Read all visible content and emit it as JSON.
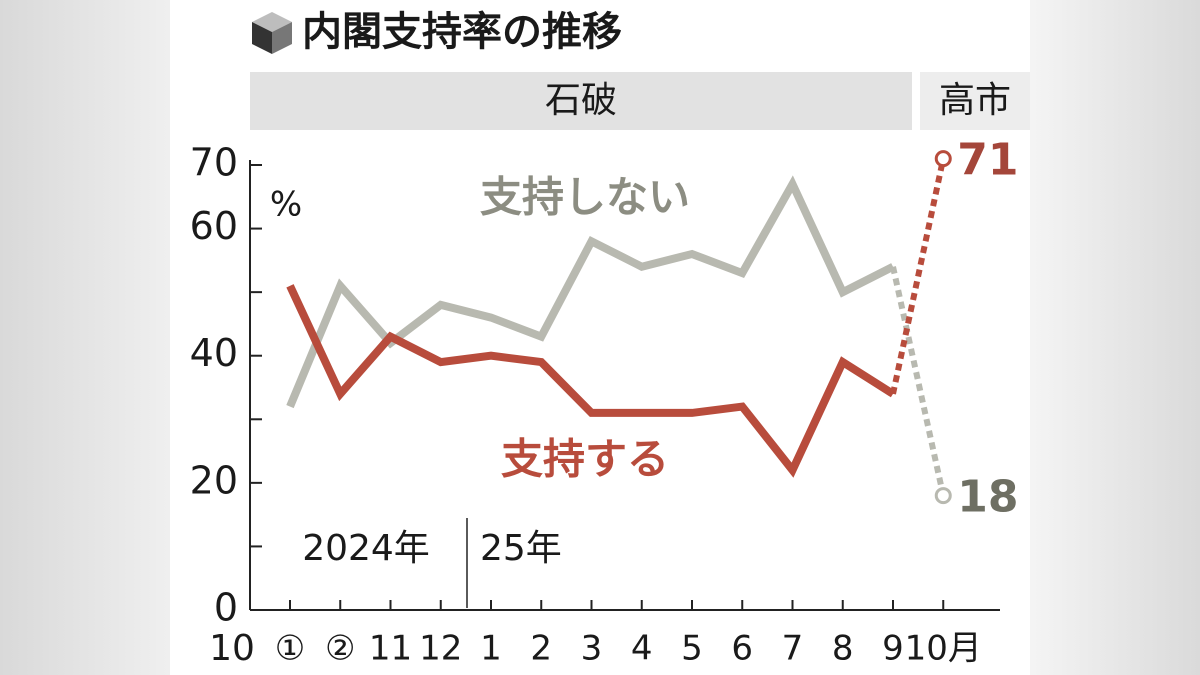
{
  "chart_data": {
    "type": "line",
    "title": "内閣支持率の推移",
    "periods": [
      "石破",
      "高市"
    ],
    "unit": "%",
    "x_start_label": "10",
    "categories": [
      "①",
      "②",
      "11",
      "12",
      "1",
      "2",
      "3",
      "4",
      "5",
      "6",
      "7",
      "8",
      "9",
      "10月"
    ],
    "year_labels": [
      "2024年",
      "25年"
    ],
    "series": [
      {
        "name": "支持しない",
        "color": "#b8b9b0",
        "label_color": "#8c8d82",
        "end_color": "#6e6f63",
        "values": [
          32,
          51,
          42,
          48,
          46,
          43,
          58,
          54,
          56,
          53,
          67,
          50,
          54,
          18
        ]
      },
      {
        "name": "支持する",
        "color": "#b84c3c",
        "label_color": "#b84c3c",
        "end_color": "#a4463a",
        "values": [
          51,
          34,
          43,
          39,
          40,
          39,
          31,
          31,
          31,
          32,
          22,
          39,
          34,
          71
        ]
      }
    ],
    "ylim": [
      0,
      70
    ],
    "yticks": [
      0,
      20,
      40,
      60,
      70
    ],
    "minor_yticks": [
      10,
      30,
      50
    ]
  }
}
